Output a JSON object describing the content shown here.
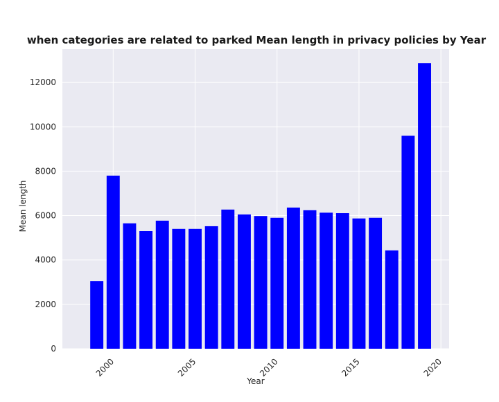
{
  "chart_data": {
    "type": "bar",
    "title": "when categories are related to parked Mean length in privacy policies by Year",
    "xlabel": "Year",
    "ylabel": "Mean length",
    "x": [
      1999,
      2000,
      2001,
      2002,
      2003,
      2004,
      2005,
      2006,
      2007,
      2008,
      2009,
      2010,
      2011,
      2012,
      2013,
      2014,
      2015,
      2016,
      2017,
      2018,
      2019
    ],
    "values": [
      3050,
      7800,
      5650,
      5300,
      5770,
      5400,
      5400,
      5520,
      6270,
      6050,
      5980,
      5900,
      6360,
      6240,
      6130,
      6110,
      5870,
      5900,
      4430,
      9600,
      12870
    ],
    "xlim": [
      1996.9,
      2020.5
    ],
    "ylim": [
      0,
      13500
    ],
    "xticks": [
      2000,
      2005,
      2010,
      2015,
      2020
    ],
    "yticks": [
      0,
      2000,
      4000,
      6000,
      8000,
      10000,
      12000
    ],
    "bar_color": "#0000ff",
    "background_color": "#eaeaf2",
    "grid_color": "#ffffff",
    "grid": true
  }
}
